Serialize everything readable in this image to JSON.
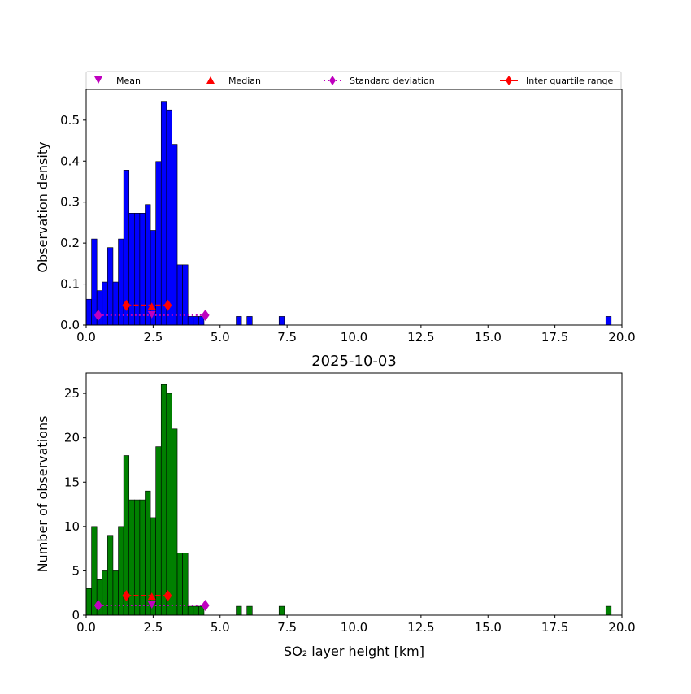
{
  "legend": {
    "placement": "top-above",
    "entries": [
      {
        "label": "Mean",
        "marker": "triangle-down",
        "color": "#bf00bf"
      },
      {
        "label": "Median",
        "marker": "triangle-up",
        "color": "#ff0000"
      },
      {
        "label": "Standard deviation",
        "marker": "diamond-dotted-line",
        "color": "#bf00bf"
      },
      {
        "label": "Inter quartile range",
        "marker": "diamond-solid-line",
        "color": "#ff0000"
      }
    ]
  },
  "chart_data": [
    {
      "type": "bar",
      "title": "",
      "xlabel": "",
      "ylabel": "Observation density",
      "xlim": [
        0,
        20
      ],
      "ylim": [
        0,
        0.575
      ],
      "bar_color": "#0000ff",
      "bin_width": 0.2,
      "bin_starts": [
        0.0,
        0.2,
        0.4,
        0.6,
        0.8,
        1.0,
        1.2,
        1.4,
        1.6,
        1.8,
        2.0,
        2.2,
        2.4,
        2.6,
        2.8,
        3.0,
        3.2,
        3.4,
        3.6,
        3.8,
        4.0,
        4.2,
        5.6,
        6.0,
        7.2,
        19.4
      ],
      "values": [
        0.063,
        0.21,
        0.084,
        0.105,
        0.189,
        0.105,
        0.21,
        0.378,
        0.273,
        0.273,
        0.273,
        0.294,
        0.231,
        0.399,
        0.546,
        0.525,
        0.441,
        0.147,
        0.147,
        0.021,
        0.021,
        0.021,
        0.021,
        0.021,
        0.021,
        0.021
      ],
      "x_ticks": [
        "0.0",
        "2.5",
        "5.0",
        "7.5",
        "10.0",
        "12.5",
        "15.0",
        "17.5",
        "20.0"
      ],
      "y_ticks": [
        "0.0",
        "0.1",
        "0.2",
        "0.3",
        "0.4",
        "0.5"
      ],
      "stats": {
        "mean": {
          "x": 2.45,
          "y": 0.024
        },
        "median": {
          "x": 2.45,
          "y": 0.045
        },
        "std_range": {
          "low": 0.45,
          "high": 4.45,
          "y": 0.024
        },
        "iqr": {
          "low": 1.5,
          "high": 3.05,
          "y": 0.048
        }
      }
    },
    {
      "type": "bar",
      "title": "2025-10-03",
      "xlabel": "SO₂ layer height [km]",
      "ylabel": "Number of observations",
      "xlim": [
        0,
        20
      ],
      "ylim": [
        0,
        27.3
      ],
      "bar_color": "#008000",
      "bin_width": 0.2,
      "bin_starts": [
        0.0,
        0.2,
        0.4,
        0.6,
        0.8,
        1.0,
        1.2,
        1.4,
        1.6,
        1.8,
        2.0,
        2.2,
        2.4,
        2.6,
        2.8,
        3.0,
        3.2,
        3.4,
        3.6,
        3.8,
        4.0,
        4.2,
        5.6,
        6.0,
        7.2,
        19.4
      ],
      "values": [
        3,
        10,
        4,
        5,
        9,
        5,
        10,
        18,
        13,
        13,
        13,
        14,
        11,
        19,
        26,
        25,
        21,
        7,
        7,
        1,
        1,
        1,
        1,
        1,
        1,
        1
      ],
      "x_ticks": [
        "0.0",
        "2.5",
        "5.0",
        "7.5",
        "10.0",
        "12.5",
        "15.0",
        "17.5",
        "20.0"
      ],
      "y_ticks": [
        "0",
        "5",
        "10",
        "15",
        "20",
        "25"
      ],
      "stats": {
        "mean": {
          "x": 2.45,
          "y": 1.1
        },
        "median": {
          "x": 2.45,
          "y": 2.1
        },
        "std_range": {
          "low": 0.45,
          "high": 4.45,
          "y": 1.1
        },
        "iqr": {
          "low": 1.5,
          "high": 3.05,
          "y": 2.2
        }
      }
    }
  ]
}
